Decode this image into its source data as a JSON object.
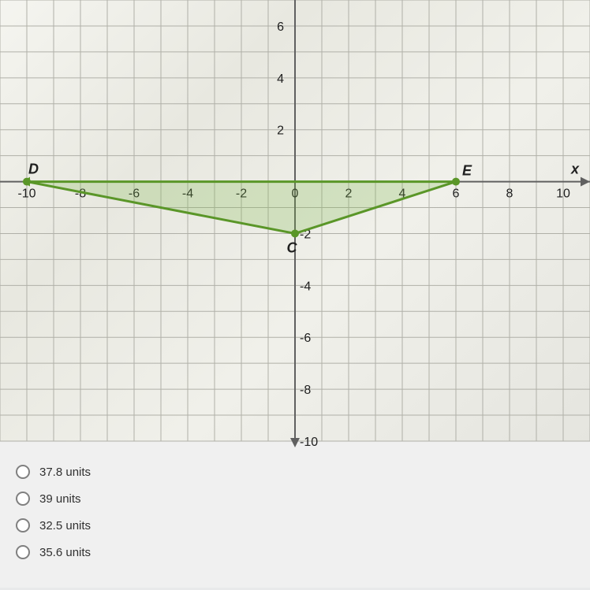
{
  "chart": {
    "xlim": [
      -11,
      11
    ],
    "ylim": [
      -10,
      7
    ],
    "x_ticks": [
      -10,
      -8,
      -6,
      -4,
      -2,
      0,
      2,
      4,
      6,
      8,
      10
    ],
    "y_ticks_pos": [
      2,
      4,
      6
    ],
    "y_ticks_neg": [
      -2,
      -4,
      -6,
      -8,
      -10
    ],
    "x_label": "x",
    "grid_color": "#b0b0a8",
    "axis_color": "#606060",
    "triangle_color": "#7ab648",
    "triangle_stroke": "#5a9628",
    "points": {
      "D": {
        "x": -10,
        "y": 0,
        "label": "D"
      },
      "E": {
        "x": 6,
        "y": 0,
        "label": "E"
      },
      "C": {
        "x": 0,
        "y": -2,
        "label": "C"
      }
    }
  },
  "answers": [
    "37.8 units",
    "39 units",
    "32.5 units",
    "35.6 units"
  ]
}
